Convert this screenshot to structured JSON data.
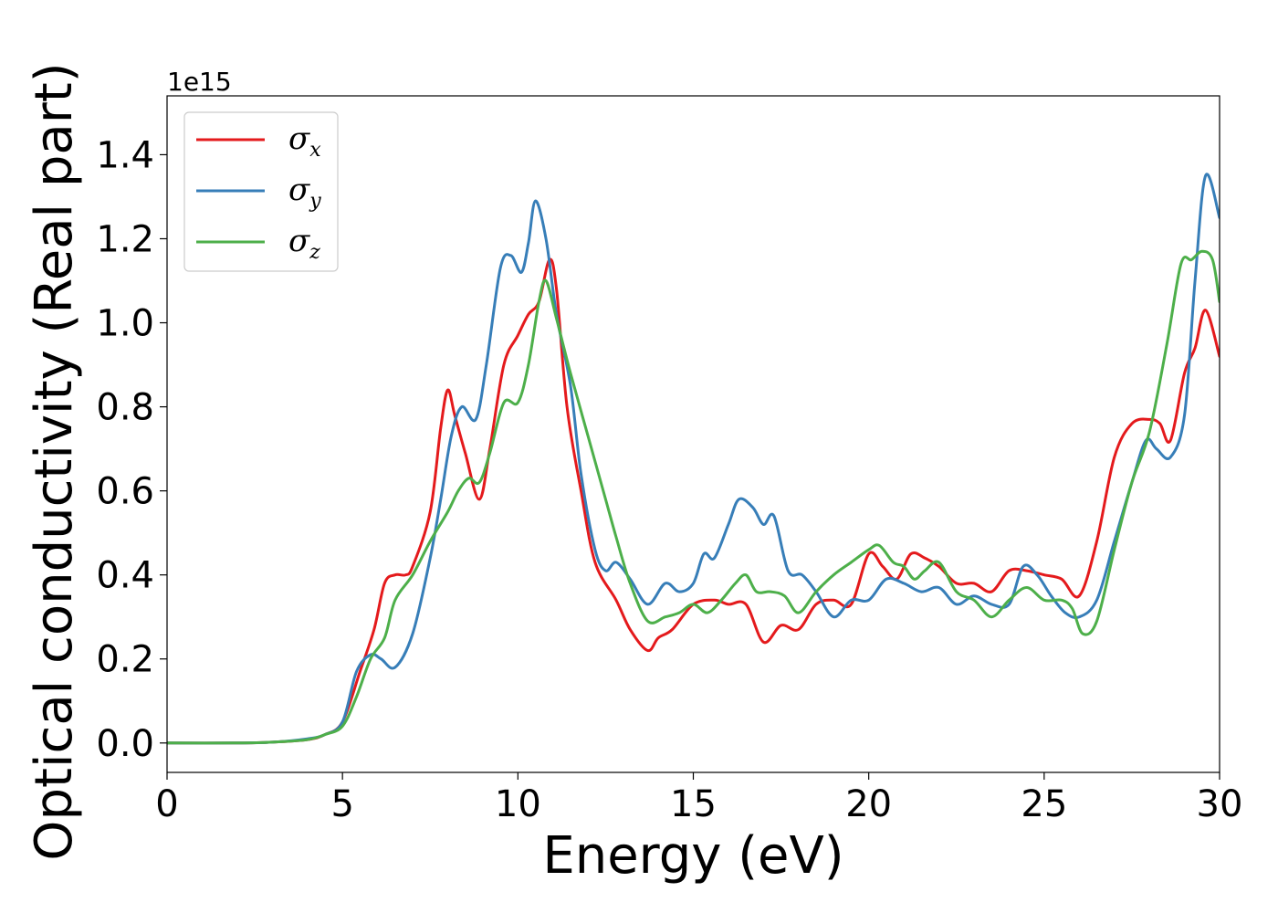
{
  "chart_data": {
    "type": "line",
    "xlabel": "Energy (eV)",
    "ylabel": "Optical conductivity (Real part)",
    "y_offset_text": "1e15",
    "xlim": [
      0,
      30
    ],
    "ylim": [
      -0.07,
      1.54
    ],
    "x_ticks": [
      0,
      5,
      10,
      15,
      20,
      25,
      30
    ],
    "x_tick_labels": [
      "0",
      "5",
      "10",
      "15",
      "20",
      "25",
      "30"
    ],
    "y_ticks": [
      0.0,
      0.2,
      0.4,
      0.6,
      0.8,
      1.0,
      1.2,
      1.4
    ],
    "y_tick_labels": [
      "0.0",
      "0.2",
      "0.4",
      "0.6",
      "0.8",
      "1.0",
      "1.2",
      "1.4"
    ],
    "grid": false,
    "legend_position": "top-left",
    "series": [
      {
        "name": "σx",
        "symbol": "σ",
        "subscript": "x",
        "color": "#e41a1c",
        "x": [
          0,
          2,
          3,
          4,
          4.5,
          5,
          5.5,
          5.9,
          6.2,
          6.5,
          6.8,
          7.0,
          7.5,
          7.8,
          8.0,
          8.2,
          8.5,
          8.9,
          9.2,
          9.6,
          10.0,
          10.3,
          10.6,
          10.9,
          11.1,
          11.4,
          11.8,
          12.2,
          12.8,
          13.2,
          13.7,
          14.0,
          14.4,
          15.0,
          15.6,
          16.0,
          16.5,
          17.0,
          17.5,
          18.0,
          18.5,
          19.0,
          19.5,
          20.0,
          20.4,
          20.8,
          21.2,
          21.6,
          22.0,
          22.5,
          23.0,
          23.5,
          24.0,
          24.5,
          25.0,
          25.5,
          26.0,
          26.5,
          27.0,
          27.5,
          28.0,
          28.3,
          28.6,
          29.0,
          29.3,
          29.6,
          30.0
        ],
        "y": [
          0.0,
          0.0,
          0.002,
          0.008,
          0.02,
          0.05,
          0.17,
          0.27,
          0.38,
          0.4,
          0.4,
          0.42,
          0.55,
          0.75,
          0.84,
          0.78,
          0.69,
          0.58,
          0.7,
          0.9,
          0.97,
          1.02,
          1.05,
          1.15,
          1.08,
          0.8,
          0.6,
          0.43,
          0.34,
          0.27,
          0.22,
          0.25,
          0.27,
          0.33,
          0.34,
          0.33,
          0.33,
          0.24,
          0.28,
          0.27,
          0.33,
          0.34,
          0.33,
          0.45,
          0.42,
          0.39,
          0.45,
          0.44,
          0.42,
          0.38,
          0.38,
          0.36,
          0.41,
          0.41,
          0.4,
          0.39,
          0.35,
          0.48,
          0.68,
          0.76,
          0.77,
          0.76,
          0.72,
          0.88,
          0.94,
          1.03,
          0.92
        ]
      },
      {
        "name": "σy",
        "symbol": "σ",
        "subscript": "y",
        "color": "#377eb8",
        "x": [
          0,
          2,
          3,
          4,
          4.5,
          5,
          5.4,
          5.8,
          6.1,
          6.5,
          7.0,
          7.5,
          7.8,
          8.1,
          8.4,
          8.8,
          9.1,
          9.5,
          9.8,
          10.1,
          10.3,
          10.5,
          10.8,
          11.1,
          11.5,
          11.8,
          12.2,
          12.5,
          12.8,
          13.2,
          13.7,
          14.2,
          14.6,
          15.0,
          15.3,
          15.6,
          16.0,
          16.3,
          16.7,
          17.0,
          17.3,
          17.7,
          18.1,
          18.5,
          19.0,
          19.5,
          20.0,
          20.5,
          21.0,
          21.5,
          22.0,
          22.5,
          23.0,
          23.5,
          24.0,
          24.4,
          24.8,
          25.2,
          25.6,
          26.0,
          26.5,
          27.0,
          27.5,
          27.9,
          28.2,
          28.6,
          29.0,
          29.3,
          29.6,
          30.0
        ],
        "y": [
          0.0,
          0.0,
          0.002,
          0.01,
          0.02,
          0.05,
          0.17,
          0.21,
          0.2,
          0.18,
          0.26,
          0.44,
          0.58,
          0.73,
          0.8,
          0.77,
          0.9,
          1.13,
          1.16,
          1.12,
          1.19,
          1.29,
          1.2,
          1.02,
          0.85,
          0.64,
          0.46,
          0.41,
          0.43,
          0.39,
          0.33,
          0.38,
          0.36,
          0.38,
          0.45,
          0.44,
          0.52,
          0.58,
          0.56,
          0.52,
          0.54,
          0.41,
          0.4,
          0.36,
          0.3,
          0.34,
          0.34,
          0.39,
          0.38,
          0.36,
          0.37,
          0.33,
          0.35,
          0.33,
          0.33,
          0.42,
          0.4,
          0.35,
          0.31,
          0.3,
          0.34,
          0.48,
          0.62,
          0.72,
          0.7,
          0.68,
          0.78,
          1.1,
          1.35,
          1.25
        ]
      },
      {
        "name": "σz",
        "symbol": "σ",
        "subscript": "z",
        "color": "#4daf4a",
        "x": [
          0,
          2,
          3,
          4,
          4.5,
          5,
          5.4,
          5.8,
          6.2,
          6.5,
          7.0,
          7.5,
          8.0,
          8.3,
          8.6,
          8.9,
          9.2,
          9.6,
          10.0,
          10.3,
          10.6,
          10.8,
          11.1,
          11.5,
          12.0,
          12.5,
          12.8,
          13.2,
          13.7,
          14.2,
          14.6,
          15.0,
          15.4,
          15.8,
          16.2,
          16.5,
          16.8,
          17.2,
          17.6,
          18.0,
          18.5,
          19.0,
          19.5,
          20.0,
          20.3,
          20.7,
          21.0,
          21.3,
          21.6,
          22.0,
          22.5,
          23.0,
          23.5,
          24.0,
          24.5,
          25.0,
          25.5,
          25.8,
          26.1,
          26.5,
          27.0,
          27.5,
          28.0,
          28.5,
          28.9,
          29.2,
          29.5,
          29.8,
          30.0
        ],
        "y": [
          0.0,
          0.0,
          0.002,
          0.008,
          0.02,
          0.04,
          0.11,
          0.2,
          0.25,
          0.34,
          0.4,
          0.48,
          0.55,
          0.6,
          0.63,
          0.62,
          0.69,
          0.81,
          0.81,
          0.9,
          1.05,
          1.1,
          1.01,
          0.88,
          0.73,
          0.58,
          0.49,
          0.38,
          0.29,
          0.3,
          0.31,
          0.33,
          0.31,
          0.34,
          0.38,
          0.4,
          0.36,
          0.36,
          0.35,
          0.31,
          0.36,
          0.4,
          0.43,
          0.46,
          0.47,
          0.43,
          0.42,
          0.39,
          0.41,
          0.43,
          0.36,
          0.34,
          0.3,
          0.34,
          0.37,
          0.34,
          0.34,
          0.32,
          0.26,
          0.29,
          0.46,
          0.62,
          0.74,
          0.95,
          1.14,
          1.15,
          1.17,
          1.15,
          1.05
        ]
      }
    ]
  }
}
